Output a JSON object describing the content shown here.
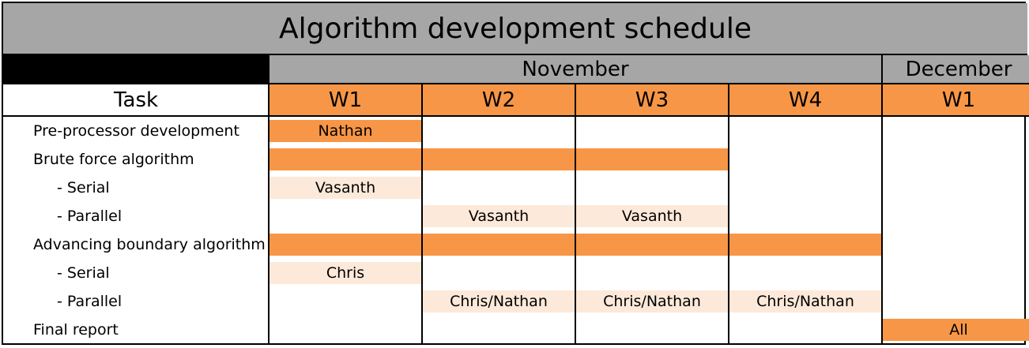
{
  "title": "Algorithm development schedule",
  "months": [
    {
      "label": "November",
      "weeks": [
        "W1",
        "W2",
        "W3",
        "W4"
      ]
    },
    {
      "label": "December",
      "weeks": [
        "W1"
      ]
    }
  ],
  "task_header": "Task",
  "tasks": [
    {
      "label": "Pre-processor development",
      "indent": false,
      "bars": [
        {
          "from": 0,
          "to": 0,
          "style": "dark",
          "text": "Nathan"
        }
      ]
    },
    {
      "label": "Brute force algorithm",
      "indent": false,
      "bars": [
        {
          "from": 0,
          "to": 0,
          "style": "dark",
          "text": ""
        },
        {
          "from": 1,
          "to": 1,
          "style": "dark",
          "text": ""
        },
        {
          "from": 2,
          "to": 2,
          "style": "dark",
          "text": ""
        }
      ]
    },
    {
      "label": "- Serial",
      "indent": true,
      "bars": [
        {
          "from": 0,
          "to": 0,
          "style": "light",
          "text": "Vasanth"
        }
      ]
    },
    {
      "label": "- Parallel",
      "indent": true,
      "bars": [
        {
          "from": 1,
          "to": 1,
          "style": "light",
          "text": "Vasanth"
        },
        {
          "from": 2,
          "to": 2,
          "style": "light",
          "text": "Vasanth"
        }
      ]
    },
    {
      "label": "Advancing boundary algorithm",
      "indent": false,
      "bars": [
        {
          "from": 0,
          "to": 0,
          "style": "dark",
          "text": ""
        },
        {
          "from": 1,
          "to": 1,
          "style": "dark",
          "text": ""
        },
        {
          "from": 2,
          "to": 2,
          "style": "dark",
          "text": ""
        },
        {
          "from": 3,
          "to": 3,
          "style": "dark",
          "text": ""
        }
      ]
    },
    {
      "label": "- Serial",
      "indent": true,
      "bars": [
        {
          "from": 0,
          "to": 0,
          "style": "light",
          "text": "Chris"
        }
      ]
    },
    {
      "label": "- Parallel",
      "indent": true,
      "bars": [
        {
          "from": 1,
          "to": 1,
          "style": "light",
          "text": "Chris/Nathan"
        },
        {
          "from": 2,
          "to": 2,
          "style": "light",
          "text": "Chris/Nathan"
        },
        {
          "from": 3,
          "to": 3,
          "style": "light",
          "text": "Chris/Nathan"
        }
      ]
    },
    {
      "label": "Final report",
      "indent": false,
      "bars": [
        {
          "from": 4,
          "to": 4,
          "style": "dark",
          "text": "All"
        }
      ]
    }
  ],
  "colors": {
    "header_gray": "#a6a6a6",
    "accent": "#f79646",
    "light_accent": "#fde9d9"
  }
}
